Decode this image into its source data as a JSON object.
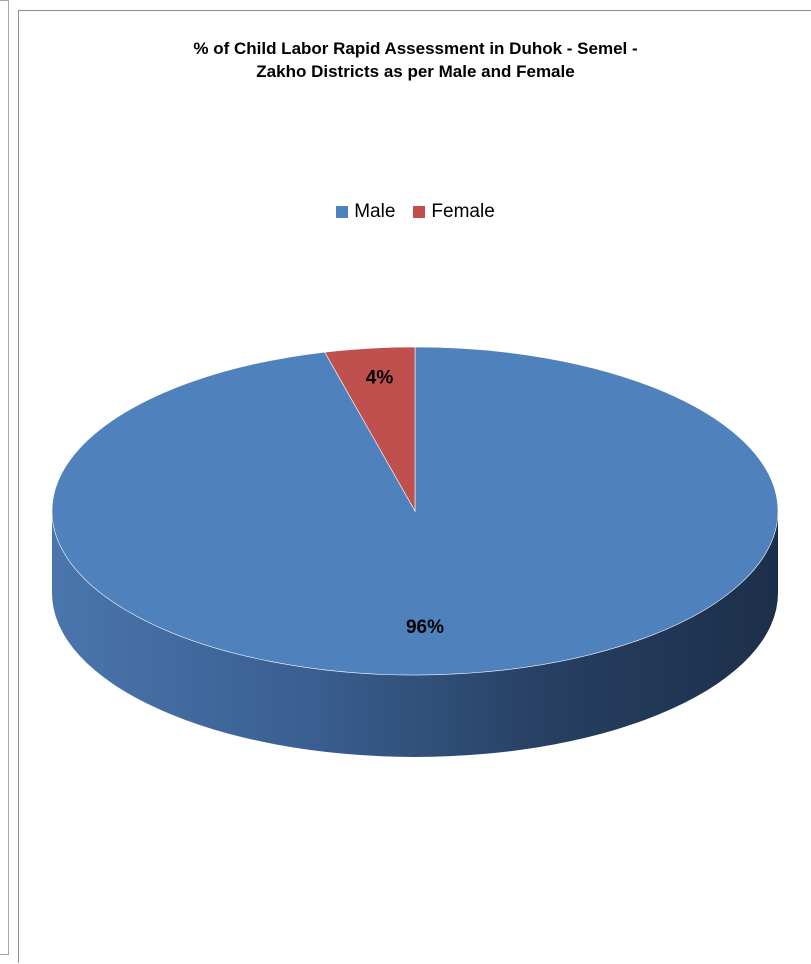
{
  "chart_data": {
    "type": "pie",
    "title_line1": "% of Child Labor Rapid Assessment in Duhok - Semel -",
    "title_line2": "Zakho Districts as per Male and Female",
    "legend_position": "top",
    "slices": [
      {
        "name": "Male",
        "value": 96,
        "label": "96%",
        "color": "#4f81bd",
        "dark_color": "#2c4770"
      },
      {
        "name": "Female",
        "value": 4,
        "label": "4%",
        "color": "#c0504d",
        "dark_color": "#7a2f2d"
      }
    ]
  }
}
